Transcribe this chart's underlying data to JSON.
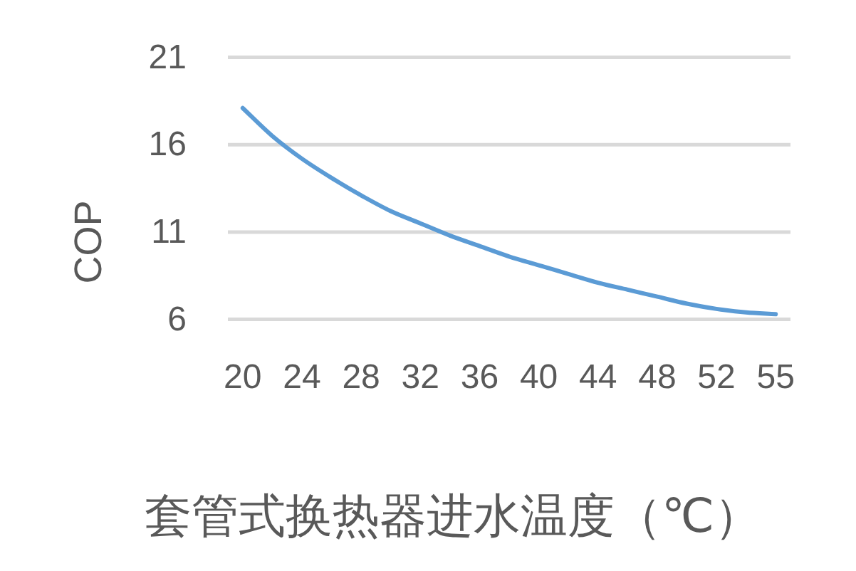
{
  "chart_data": {
    "type": "line",
    "xlabel": "套管式换热器进水温度（℃）",
    "ylabel": "COP",
    "categories": [
      "20",
      null,
      "24",
      null,
      "28",
      null,
      "32",
      null,
      "36",
      null,
      "40",
      null,
      "44",
      null,
      "48",
      null,
      "52",
      null,
      "55"
    ],
    "series": [
      {
        "color": "#5b9bd5",
        "values": [
          18.1,
          16.5,
          15.2,
          14.1,
          13.1,
          12.2,
          11.5,
          10.8,
          10.2,
          9.6,
          9.1,
          8.6,
          8.1,
          7.7,
          7.3,
          6.9,
          6.6,
          6.4,
          6.3
        ]
      }
    ],
    "ylim": [
      6,
      21
    ],
    "yticks": [
      6,
      11,
      16,
      21
    ],
    "grid": "y",
    "line_style": "solid"
  }
}
